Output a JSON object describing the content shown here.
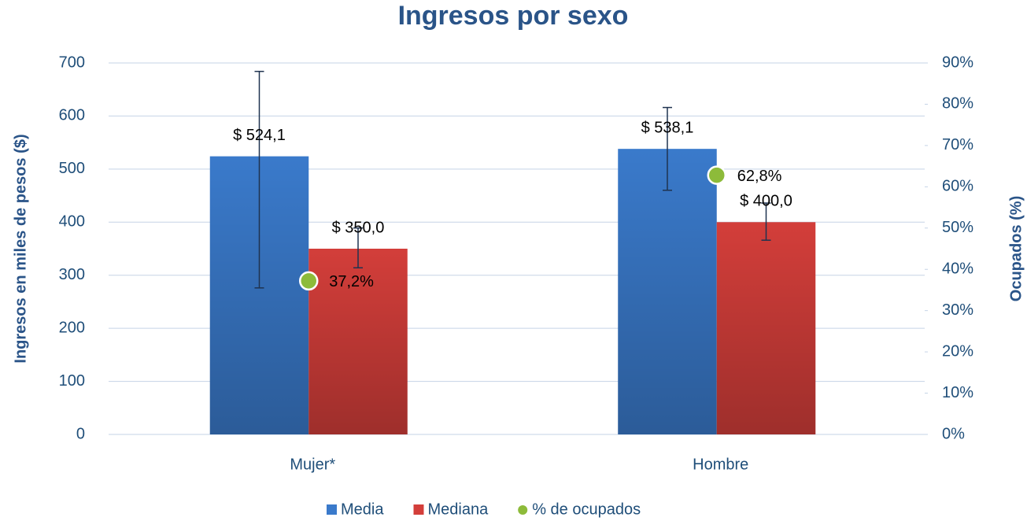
{
  "chart_data": {
    "type": "bar",
    "title": "Ingresos por sexo",
    "y_label": "Ingresos en miles de pesos ($)",
    "y2_label": "Ocupados (%)",
    "categories": [
      "Mujer*",
      "Hombre"
    ],
    "series": [
      {
        "name": "Media",
        "color": "#3a7acb",
        "values": [
          524.1,
          538.1
        ],
        "value_labels": [
          "$ 524,1",
          "$ 538,1"
        ],
        "error_plus": [
          160,
          78
        ],
        "error_minus": [
          248,
          78
        ]
      },
      {
        "name": "Mediana",
        "color": "#d33e3a",
        "values": [
          350.0,
          400.0
        ],
        "value_labels": [
          "$ 350,0",
          "$ 400,0"
        ],
        "error_plus": [
          39,
          36
        ],
        "error_minus": [
          36,
          34
        ]
      },
      {
        "name": "% de ocupados",
        "type": "scatter",
        "axis": "y2",
        "color": "#8dbb3a",
        "values": [
          37.2,
          62.8
        ],
        "value_labels": [
          "37,2%",
          "62,8%"
        ]
      }
    ],
    "ylim": [
      0,
      700
    ],
    "yticks": [
      0,
      100,
      200,
      300,
      400,
      500,
      600,
      700
    ],
    "y2lim": [
      0,
      90
    ],
    "y2ticks": [
      {
        "value": 0,
        "label": "0%"
      },
      {
        "value": 10,
        "label": "10%"
      },
      {
        "value": 20,
        "label": "20%"
      },
      {
        "value": 30,
        "label": "30%"
      },
      {
        "value": 40,
        "label": "40%"
      },
      {
        "value": 50,
        "label": "50%"
      },
      {
        "value": 60,
        "label": "60%"
      },
      {
        "value": 70,
        "label": "70%"
      },
      {
        "value": 80,
        "label": "80%"
      },
      {
        "value": 90,
        "label": "90%"
      }
    ],
    "grid": true,
    "legend": "bottom"
  }
}
